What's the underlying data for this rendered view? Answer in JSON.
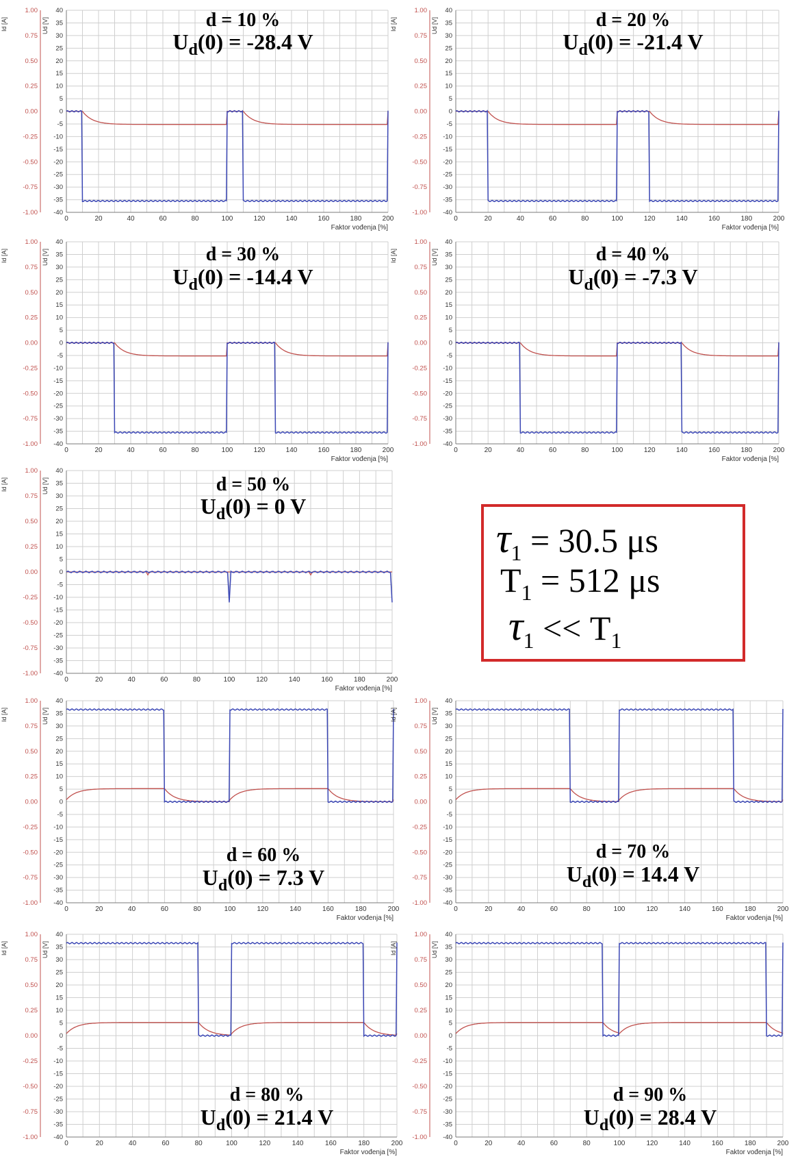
{
  "chart_data": [
    {
      "type": "line",
      "title": "d = 10 %",
      "subtitle_prefix": "U",
      "subtitle_sub": "d",
      "subtitle_rest": "(0) = -28.4 V",
      "duty": 10,
      "xlabel": "Faktor vođenja [%]",
      "ylabel_left": "Id [A]",
      "ylabel_right": "Ud [V]",
      "xlim": [
        0,
        200
      ],
      "ylim_current": [
        -1,
        1
      ],
      "ylim_voltage": [
        -40,
        40
      ],
      "xticks": [
        "0",
        "20",
        "40",
        "60",
        "80",
        "100",
        "120",
        "140",
        "160",
        "180",
        "200"
      ],
      "yticks_current": [
        "1.00",
        "0.75",
        "0.50",
        "0.25",
        "0.00",
        "-0.25",
        "-0.50",
        "-0.75",
        "-1.00"
      ],
      "yticks_voltage": [
        "40",
        "35",
        "30",
        "25",
        "20",
        "15",
        "10",
        "5",
        "0",
        "-5",
        "-10",
        "-15",
        "-20",
        "-25",
        "-30",
        "-35",
        "-40"
      ],
      "series": [
        {
          "color": "#3b47b5",
          "high": 0,
          "low": -35.5,
          "period": 100
        },
        {
          "color": "#c0504d",
          "max": 0,
          "min": -0.13,
          "period": 100
        }
      ]
    },
    {
      "type": "line",
      "title": "d = 20 %",
      "subtitle_prefix": "U",
      "subtitle_sub": "d",
      "subtitle_rest": "(0) = -21.4 V",
      "duty": 20,
      "xlabel": "Faktor vođenja [%]",
      "ylabel_left": "Id [A]",
      "ylabel_right": "Ud [V]",
      "xlim": [
        0,
        200
      ],
      "ylim_current": [
        -1,
        1
      ],
      "ylim_voltage": [
        -40,
        40
      ],
      "xticks": [
        "0",
        "20",
        "40",
        "60",
        "80",
        "100",
        "120",
        "140",
        "160",
        "180",
        "200"
      ],
      "yticks_current": [
        "1.00",
        "0.75",
        "0.50",
        "0.25",
        "0.00",
        "-0.25",
        "-0.50",
        "-0.75",
        "-1.00"
      ],
      "yticks_voltage": [
        "40",
        "35",
        "30",
        "25",
        "20",
        "15",
        "10",
        "5",
        "0",
        "-5",
        "-10",
        "-15",
        "-20",
        "-25",
        "-30",
        "-35",
        "-40"
      ],
      "series": [
        {
          "color": "#3b47b5",
          "high": 0,
          "low": -35.5,
          "period": 100
        },
        {
          "color": "#c0504d",
          "max": 0,
          "min": -0.13,
          "period": 100
        }
      ]
    },
    {
      "type": "line",
      "title": "d = 30 %",
      "subtitle_prefix": "U",
      "subtitle_sub": "d",
      "subtitle_rest": "(0) = -14.4 V",
      "duty": 30,
      "xlabel": "Faktor vođenja [%]",
      "ylabel_left": "Id [A]",
      "ylabel_right": "Ud [V]",
      "xlim": [
        0,
        200
      ],
      "ylim_current": [
        -1,
        1
      ],
      "ylim_voltage": [
        -40,
        40
      ],
      "xticks": [
        "0",
        "20",
        "40",
        "60",
        "80",
        "100",
        "120",
        "140",
        "160",
        "180",
        "200"
      ],
      "yticks_current": [
        "1.00",
        "0.75",
        "0.50",
        "0.25",
        "0.00",
        "-0.25",
        "-0.50",
        "-0.75",
        "-1.00"
      ],
      "yticks_voltage": [
        "40",
        "35",
        "30",
        "25",
        "20",
        "15",
        "10",
        "5",
        "0",
        "-5",
        "-10",
        "-15",
        "-20",
        "-25",
        "-30",
        "-35",
        "-40"
      ],
      "series": [
        {
          "color": "#3b47b5",
          "high": 0,
          "low": -35.5,
          "period": 100
        },
        {
          "color": "#c0504d",
          "max": 0,
          "min": -0.13,
          "period": 100
        }
      ]
    },
    {
      "type": "line",
      "title": "d = 40 %",
      "subtitle_prefix": "U",
      "subtitle_sub": "d",
      "subtitle_rest": "(0) =  -7.3 V",
      "duty": 40,
      "xlabel": "Faktor vođenja [%]",
      "ylabel_left": "Id [A]",
      "ylabel_right": "Ud [V]",
      "xlim": [
        0,
        200
      ],
      "ylim_current": [
        -1,
        1
      ],
      "ylim_voltage": [
        -40,
        40
      ],
      "xticks": [
        "0",
        "20",
        "40",
        "60",
        "80",
        "100",
        "120",
        "140",
        "160",
        "180",
        "200"
      ],
      "yticks_current": [
        "1.00",
        "0.75",
        "0.50",
        "0.25",
        "0.00",
        "-0.25",
        "-0.50",
        "-0.75",
        "-1.00"
      ],
      "yticks_voltage": [
        "40",
        "35",
        "30",
        "25",
        "20",
        "15",
        "10",
        "5",
        "0",
        "-5",
        "-10",
        "-15",
        "-20",
        "-25",
        "-30",
        "-35",
        "-40"
      ],
      "series": [
        {
          "color": "#3b47b5",
          "high": 0,
          "low": -35.5,
          "period": 100
        },
        {
          "color": "#c0504d",
          "max": 0,
          "min": -0.13,
          "period": 100
        }
      ]
    },
    {
      "type": "line",
      "title": "d = 50 %",
      "subtitle_prefix": "U",
      "subtitle_sub": "d",
      "subtitle_rest": "(0) =  0  V",
      "duty": 50,
      "xlabel": "Faktor vođenja [%]",
      "ylabel_left": "Id [A]",
      "ylabel_right": "Ud [V]",
      "xlim": [
        0,
        200
      ],
      "ylim_current": [
        -1,
        1
      ],
      "ylim_voltage": [
        -40,
        40
      ],
      "xticks": [
        "0",
        "20",
        "40",
        "60",
        "80",
        "100",
        "120",
        "140",
        "160",
        "180",
        "200"
      ],
      "yticks_current": [
        "1.00",
        "0.75",
        "0.50",
        "0.25",
        "0.00",
        "-0.25",
        "-0.50",
        "-0.75",
        "-1.00"
      ],
      "yticks_voltage": [
        "40",
        "35",
        "30",
        "25",
        "20",
        "15",
        "10",
        "5",
        "0",
        "-5",
        "-10",
        "-15",
        "-20",
        "-25",
        "-30",
        "-35",
        "-40"
      ],
      "series": [
        {
          "color": "#3b47b5",
          "high": 0,
          "low": 0,
          "period": 100
        },
        {
          "color": "#c0504d",
          "max": 0,
          "min": 0,
          "period": 100
        }
      ]
    },
    {
      "type": "line",
      "title": "d = 60 %",
      "subtitle_prefix": "U",
      "subtitle_sub": "d",
      "subtitle_rest": "(0) = 7.3 V",
      "duty": 60,
      "xlabel": "Faktor vođenja [%]",
      "ylabel_left": "Id [A]",
      "ylabel_right": "Ud [V]",
      "xlim": [
        0,
        200
      ],
      "ylim_current": [
        -1,
        1
      ],
      "ylim_voltage": [
        -40,
        40
      ],
      "xticks": [
        "0",
        "20",
        "40",
        "60",
        "80",
        "100",
        "120",
        "140",
        "160",
        "180",
        "200"
      ],
      "yticks_current": [
        "1.00",
        "0.75",
        "0.50",
        "0.25",
        "0.00",
        "-0.25",
        "-0.50",
        "-0.75",
        "-1.00"
      ],
      "yticks_voltage": [
        "40",
        "35",
        "30",
        "25",
        "20",
        "15",
        "10",
        "5",
        "0",
        "-5",
        "-10",
        "-15",
        "-20",
        "-25",
        "-30",
        "-35",
        "-40"
      ],
      "series": [
        {
          "color": "#3b47b5",
          "high": 36.5,
          "low": 0,
          "period": 100
        },
        {
          "color": "#c0504d",
          "max": 0.13,
          "min": 0,
          "period": 100
        }
      ]
    },
    {
      "type": "line",
      "title": "d = 70 %",
      "subtitle_prefix": "U",
      "subtitle_sub": "d",
      "subtitle_rest": "(0) = 14.4 V",
      "duty": 70,
      "xlabel": "Faktor vođenja [%]",
      "ylabel_left": "Id [A]",
      "ylabel_right": "Ud [V]",
      "xlim": [
        0,
        200
      ],
      "ylim_current": [
        -1,
        1
      ],
      "ylim_voltage": [
        -40,
        40
      ],
      "xticks": [
        "0",
        "20",
        "40",
        "60",
        "80",
        "100",
        "120",
        "140",
        "160",
        "180",
        "200"
      ],
      "yticks_current": [
        "1.00",
        "0.75",
        "0.50",
        "0.25",
        "0.00",
        "-0.25",
        "-0.50",
        "-0.75",
        "-1.00"
      ],
      "yticks_voltage": [
        "40",
        "35",
        "30",
        "25",
        "20",
        "15",
        "10",
        "5",
        "0",
        "-5",
        "-10",
        "-15",
        "-20",
        "-25",
        "-30",
        "-35",
        "-40"
      ],
      "series": [
        {
          "color": "#3b47b5",
          "high": 36.5,
          "low": 0,
          "period": 100
        },
        {
          "color": "#c0504d",
          "max": 0.13,
          "min": 0,
          "period": 100
        }
      ]
    },
    {
      "type": "line",
      "title": "d =  80 %",
      "subtitle_prefix": "U",
      "subtitle_sub": "d",
      "subtitle_rest": "(0) = 21.4 V",
      "duty": 80,
      "xlabel": "Faktor vođenja [%]",
      "ylabel_left": "Id [A]",
      "ylabel_right": "Ud [V]",
      "xlim": [
        0,
        200
      ],
      "ylim_current": [
        -1,
        1
      ],
      "ylim_voltage": [
        -40,
        40
      ],
      "xticks": [
        "0",
        "20",
        "40",
        "60",
        "80",
        "100",
        "120",
        "140",
        "160",
        "180",
        "200"
      ],
      "yticks_current": [
        "1.00",
        "0.75",
        "0.50",
        "0.25",
        "0.00",
        "-0.25",
        "-0.50",
        "-0.75",
        "-1.00"
      ],
      "yticks_voltage": [
        "40",
        "35",
        "30",
        "25",
        "20",
        "15",
        "10",
        "5",
        "0",
        "-5",
        "-10",
        "-15",
        "-20",
        "-25",
        "-30",
        "-35",
        "-40"
      ],
      "series": [
        {
          "color": "#3b47b5",
          "high": 36.5,
          "low": 0,
          "period": 100
        },
        {
          "color": "#c0504d",
          "max": 0.13,
          "min": 0,
          "period": 100
        }
      ]
    },
    {
      "type": "line",
      "title": "d = 90 %",
      "subtitle_prefix": "U",
      "subtitle_sub": "d",
      "subtitle_rest": "(0) = 28.4 V",
      "duty": 90,
      "xlabel": "Faktor vođenja [%]",
      "ylabel_left": "Id [A]",
      "ylabel_right": "Ud [V]",
      "xlim": [
        0,
        200
      ],
      "ylim_current": [
        -1,
        1
      ],
      "ylim_voltage": [
        -40,
        40
      ],
      "xticks": [
        "0",
        "20",
        "40",
        "60",
        "80",
        "100",
        "120",
        "140",
        "160",
        "180",
        "200"
      ],
      "yticks_current": [
        "1.00",
        "0.75",
        "0.50",
        "0.25",
        "0.00",
        "-0.25",
        "-0.50",
        "-0.75",
        "-1.00"
      ],
      "yticks_voltage": [
        "40",
        "35",
        "30",
        "25",
        "20",
        "15",
        "10",
        "5",
        "0",
        "-5",
        "-10",
        "-15",
        "-20",
        "-25",
        "-30",
        "-35",
        "-40"
      ],
      "series": [
        {
          "color": "#3b47b5",
          "high": 36.5,
          "low": 0,
          "period": 100
        },
        {
          "color": "#c0504d",
          "max": 0.13,
          "min": 0,
          "period": 100
        }
      ]
    }
  ],
  "info_box": {
    "line1": {
      "symbol": "τ",
      "sub": "1",
      "text": "= 30.5 μs"
    },
    "line2": {
      "symbol": "T",
      "sub": "1",
      "text": "= 512 μs"
    },
    "line3": {
      "symbol": "τ",
      "sub": "1",
      "text": "<< T",
      "sub2": "1"
    },
    "border_color": "#d22a2a"
  },
  "colors": {
    "grid": "#cfcfcf",
    "axis": "#7a7a7a",
    "voltage": "#3b47b5",
    "current": "#c0504d"
  }
}
